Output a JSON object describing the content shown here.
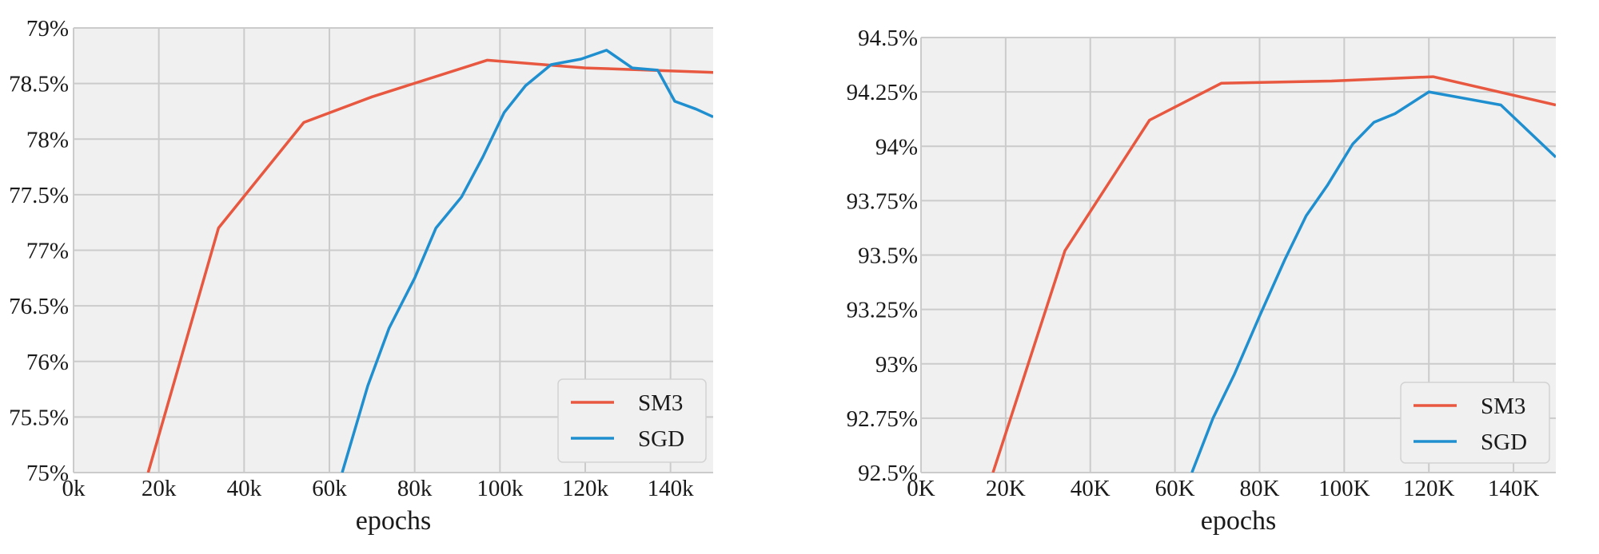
{
  "colors": {
    "sm3": "#e8573f",
    "sgd": "#1f8fcf",
    "plot_bg": "#f0f0f0",
    "grid": "#cbcbcb"
  },
  "chart_data": [
    {
      "type": "line",
      "title": "",
      "xlabel": "epochs",
      "ylabel": "",
      "xlim": [
        0,
        150000
      ],
      "ylim": [
        75,
        79
      ],
      "grid": true,
      "legend_position": "bottom-right",
      "x_ticks": [
        0,
        20000,
        40000,
        60000,
        80000,
        100000,
        120000,
        140000
      ],
      "x_tick_labels": [
        "0k",
        "20k",
        "40k",
        "60k",
        "80k",
        "100k",
        "120k",
        "140k"
      ],
      "y_ticks": [
        75,
        75.5,
        76,
        76.5,
        77,
        77.5,
        78,
        78.5,
        79
      ],
      "y_tick_labels": [
        "75%",
        "75.5%",
        "76%",
        "76.5%",
        "77%",
        "77.5%",
        "78%",
        "78.5%",
        "79%"
      ],
      "series": [
        {
          "name": "SM3",
          "color": "#e8573f",
          "points": [
            [
              17500,
              75.0
            ],
            [
              34000,
              77.2
            ],
            [
              54000,
              78.15
            ],
            [
              70000,
              78.38
            ],
            [
              97000,
              78.71
            ],
            [
              120000,
              78.64
            ],
            [
              150000,
              78.6
            ]
          ]
        },
        {
          "name": "SGD",
          "color": "#1f8fcf",
          "points": [
            [
              63000,
              75.0
            ],
            [
              69000,
              75.78
            ],
            [
              74000,
              76.3
            ],
            [
              80000,
              76.75
            ],
            [
              85000,
              77.2
            ],
            [
              91000,
              77.48
            ],
            [
              96000,
              77.84
            ],
            [
              101000,
              78.24
            ],
            [
              106000,
              78.48
            ],
            [
              112000,
              78.67
            ],
            [
              119000,
              78.72
            ],
            [
              125000,
              78.8
            ],
            [
              131000,
              78.64
            ],
            [
              137000,
              78.62
            ],
            [
              141000,
              78.34
            ],
            [
              146000,
              78.27
            ],
            [
              150000,
              78.2
            ]
          ]
        }
      ]
    },
    {
      "type": "line",
      "title": "",
      "xlabel": "epochs",
      "ylabel": "",
      "xlim": [
        0,
        150000
      ],
      "ylim": [
        92.5,
        94.5
      ],
      "grid": true,
      "legend_position": "bottom-right",
      "x_ticks": [
        0,
        20000,
        40000,
        60000,
        80000,
        100000,
        120000,
        140000
      ],
      "x_tick_labels": [
        "0K",
        "20K",
        "40K",
        "60K",
        "80K",
        "100K",
        "120K",
        "140K"
      ],
      "y_ticks": [
        92.5,
        92.75,
        93,
        93.25,
        93.5,
        93.75,
        94,
        94.25,
        94.5
      ],
      "y_tick_labels": [
        "92.5%",
        "92.75%",
        "93%",
        "93.25%",
        "93.5%",
        "93.75%",
        "94%",
        "94.25%",
        "94.5%"
      ],
      "series": [
        {
          "name": "SM3",
          "color": "#e8573f",
          "points": [
            [
              17000,
              92.5
            ],
            [
              34000,
              93.52
            ],
            [
              54000,
              94.12
            ],
            [
              71000,
              94.29
            ],
            [
              97000,
              94.3
            ],
            [
              121000,
              94.32
            ],
            [
              150000,
              94.19
            ]
          ]
        },
        {
          "name": "SGD",
          "color": "#1f8fcf",
          "points": [
            [
              64000,
              92.5
            ],
            [
              69000,
              92.75
            ],
            [
              74000,
              92.95
            ],
            [
              80000,
              93.22
            ],
            [
              86000,
              93.48
            ],
            [
              91000,
              93.68
            ],
            [
              96000,
              93.82
            ],
            [
              102000,
              94.01
            ],
            [
              107000,
              94.11
            ],
            [
              112000,
              94.15
            ],
            [
              120000,
              94.25
            ],
            [
              137000,
              94.19
            ],
            [
              150000,
              93.95
            ]
          ]
        }
      ]
    }
  ]
}
